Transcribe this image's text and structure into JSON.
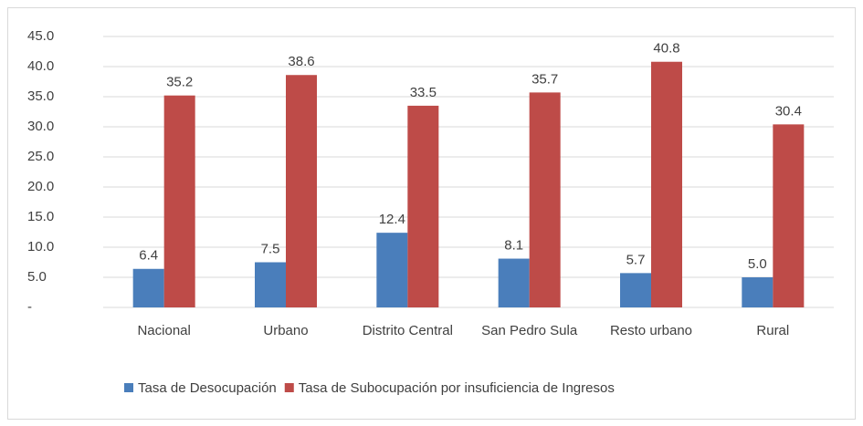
{
  "chart_data": {
    "type": "bar",
    "categories": [
      "Nacional",
      "Urbano",
      "Distrito Central",
      "San Pedro Sula",
      "Resto urbano",
      "Rural"
    ],
    "series": [
      {
        "name": "Tasa de Desocupación",
        "color": "#4a7ebb",
        "values": [
          6.4,
          7.5,
          12.4,
          8.1,
          5.7,
          5.0
        ],
        "value_labels": [
          "6.4",
          "7.5",
          "12.4",
          "8.1",
          "5.7",
          "5.0"
        ]
      },
      {
        "name": "Tasa de Subocupación por insuficiencia de Ingresos",
        "color": "#be4b48",
        "values": [
          35.2,
          38.6,
          33.5,
          35.7,
          40.8,
          30.4
        ],
        "value_labels": [
          "35.2",
          "38.6",
          "33.5",
          "35.7",
          "40.8",
          "30.4"
        ]
      }
    ],
    "ylim": [
      0,
      45
    ],
    "yticks": [
      {
        "value": 0,
        "label": "-"
      },
      {
        "value": 5,
        "label": "5.0"
      },
      {
        "value": 10,
        "label": "10.0"
      },
      {
        "value": 15,
        "label": "15.0"
      },
      {
        "value": 20,
        "label": "20.0"
      },
      {
        "value": 25,
        "label": "25.0"
      },
      {
        "value": 30,
        "label": "30.0"
      },
      {
        "value": 35,
        "label": "35.0"
      },
      {
        "value": 40,
        "label": "40.0"
      },
      {
        "value": 45,
        "label": "45.0"
      }
    ],
    "grid": true,
    "legend": "bottom"
  }
}
